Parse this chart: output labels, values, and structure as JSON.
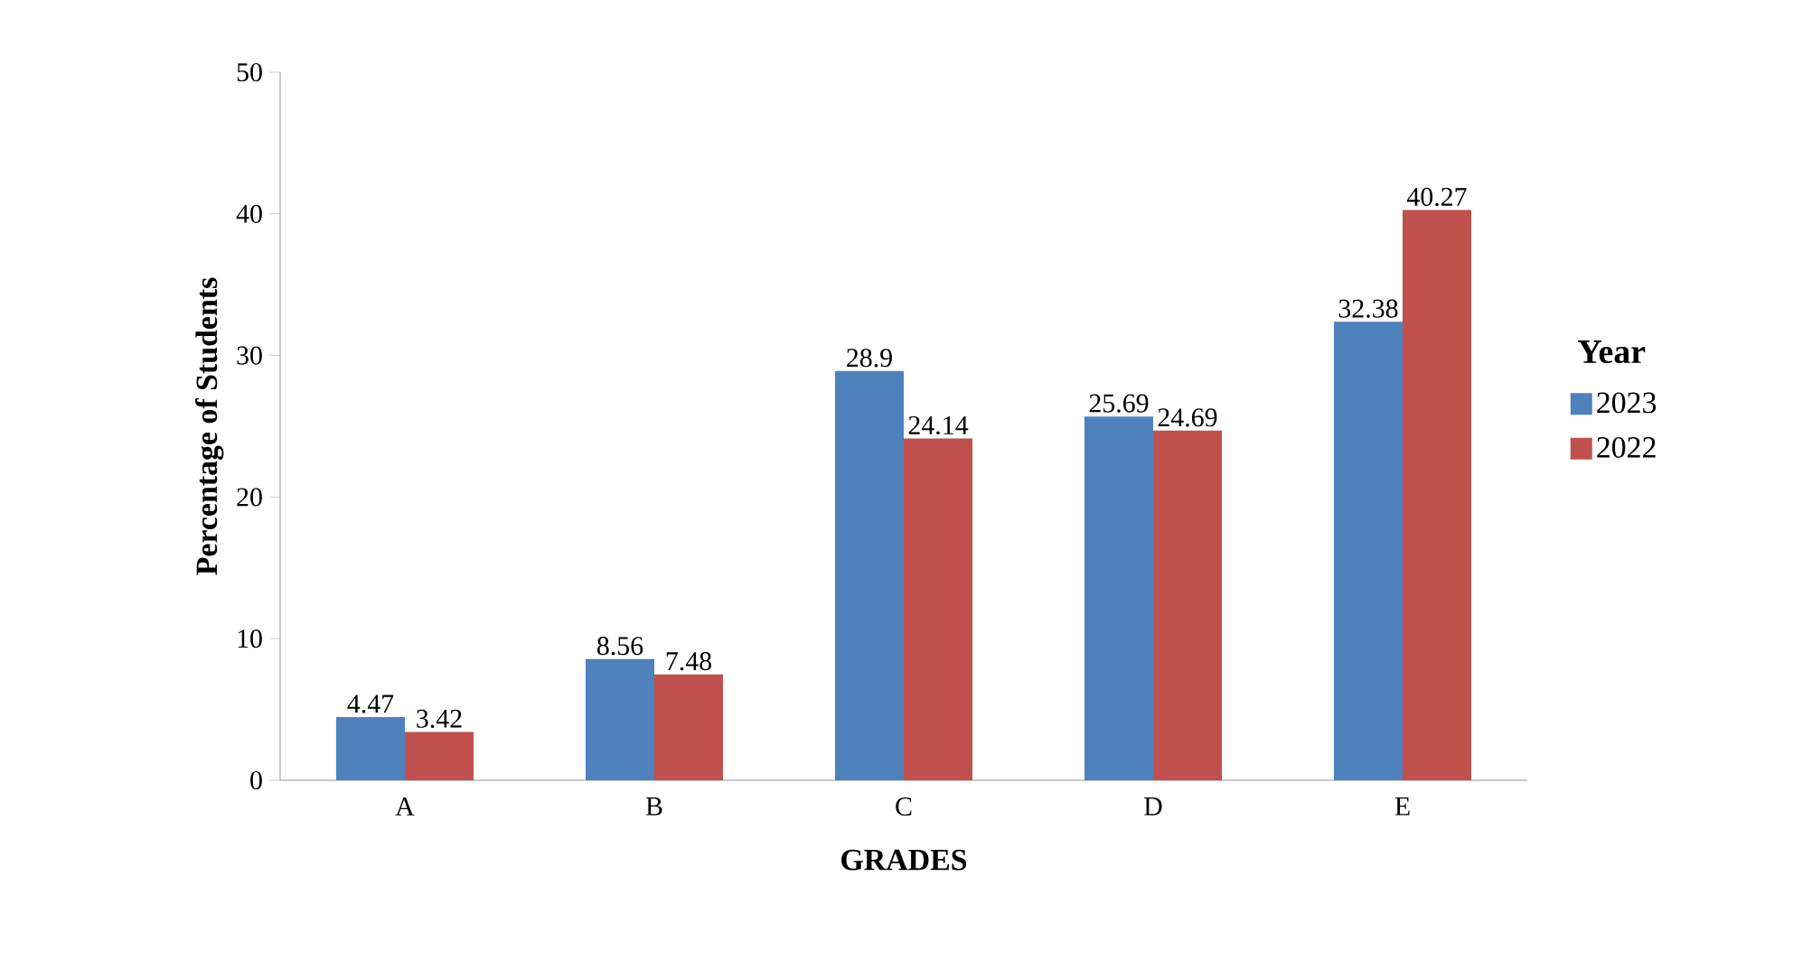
{
  "chart_data": {
    "type": "bar",
    "xlabel": "GRADES",
    "ylabel": "Percentage of Students",
    "legend_title": "Year",
    "categories": [
      "A",
      "B",
      "C",
      "D",
      "E"
    ],
    "series": [
      {
        "name": "2023",
        "color": "#4f81bd",
        "values": [
          4.47,
          8.56,
          28.9,
          25.69,
          32.38
        ]
      },
      {
        "name": "2022",
        "color": "#c0504d",
        "values": [
          3.42,
          7.48,
          24.14,
          24.69,
          40.27
        ]
      }
    ],
    "ylim": [
      0,
      50
    ],
    "yticks": [
      0,
      10,
      20,
      30,
      40,
      50
    ],
    "data_labels": true,
    "legend": "right"
  }
}
